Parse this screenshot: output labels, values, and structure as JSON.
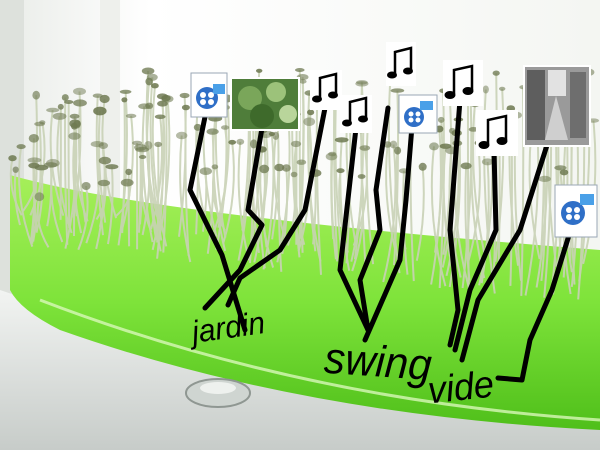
{
  "scene": {
    "description_free": true,
    "colors": {
      "liquid": "#7ee33a",
      "liquid_dark": "#4fbf1a",
      "stems": "#c9d2b6",
      "leaves": "#6f7a52",
      "root_lines": "#000000"
    }
  },
  "labels": {
    "jardin": "jardin",
    "swing": "swing",
    "vide": "vide"
  },
  "icons": [
    {
      "name": "video-file-icon"
    },
    {
      "name": "garden-photo-thumbnail"
    },
    {
      "name": "music-note-icon"
    },
    {
      "name": "music-note-icon"
    },
    {
      "name": "music-note-icon"
    },
    {
      "name": "video-file-icon"
    },
    {
      "name": "music-note-icon"
    },
    {
      "name": "music-note-icon"
    },
    {
      "name": "street-photo-thumbnail"
    },
    {
      "name": "video-file-icon"
    }
  ]
}
